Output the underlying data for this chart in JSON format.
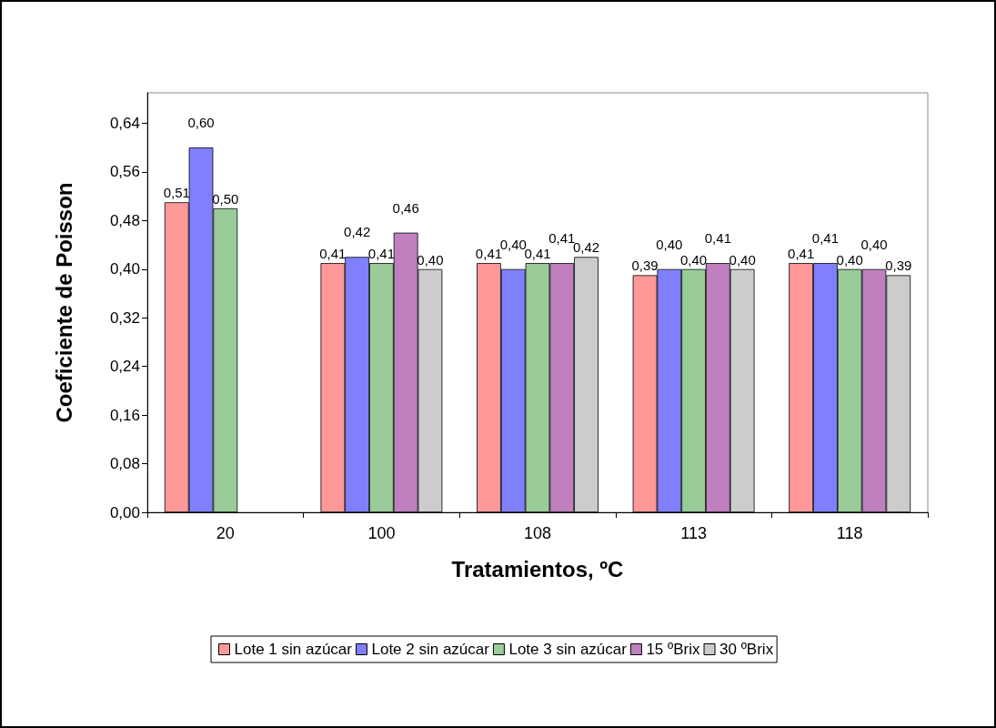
{
  "chart_data": {
    "type": "bar",
    "xlabel": "Tratamientos, ºC",
    "ylabel": "Coeficiente de Poisson",
    "categories": [
      "20",
      "100",
      "108",
      "113",
      "118"
    ],
    "series": [
      {
        "name": "Lote 1 sin azúcar",
        "color": "#ff9999",
        "values": [
          0.51,
          0.41,
          0.41,
          0.39,
          0.41
        ],
        "value_labels": [
          "0,51",
          "0,41",
          "0,41",
          "0,39",
          "0,41"
        ]
      },
      {
        "name": "Lote 2 sin azúcar",
        "color": "#8080ff",
        "values": [
          0.6,
          0.42,
          0.4,
          0.4,
          0.41
        ],
        "value_labels": [
          "0,60",
          "0,42",
          "0,40",
          "0,40",
          "0,41"
        ]
      },
      {
        "name": "Lote 3 sin azúcar",
        "color": "#99cc99",
        "values": [
          0.5,
          0.41,
          0.41,
          0.4,
          0.4
        ],
        "value_labels": [
          "0,50",
          "0,41",
          "0,41",
          "0,40",
          "0,40"
        ]
      },
      {
        "name": "15 ºBrix",
        "color": "#c080c0",
        "values": [
          null,
          0.46,
          0.41,
          0.41,
          0.4
        ],
        "value_labels": [
          null,
          "0,46",
          "0,41",
          "0,41",
          "0,40"
        ]
      },
      {
        "name": "30 ºBrix",
        "color": "#cccccc",
        "values": [
          null,
          0.4,
          0.42,
          0.4,
          0.39
        ],
        "value_labels": [
          null,
          "0,40",
          "0,42",
          "0,40",
          "0,39"
        ]
      }
    ],
    "ylim": [
      0,
      0.69
    ],
    "yticks": [
      {
        "value": 0,
        "label": "0,00"
      },
      {
        "value": 0.08,
        "label": "0,08"
      },
      {
        "value": 0.16,
        "label": "0,16"
      },
      {
        "value": 0.24,
        "label": "0,24"
      },
      {
        "value": 0.32,
        "label": "0,32"
      },
      {
        "value": 0.4,
        "label": "0,40"
      },
      {
        "value": 0.48,
        "label": "0,48"
      },
      {
        "value": 0.56,
        "label": "0,56"
      },
      {
        "value": 0.64,
        "label": "0,64"
      }
    ],
    "grid": false,
    "legend": "bottom"
  }
}
